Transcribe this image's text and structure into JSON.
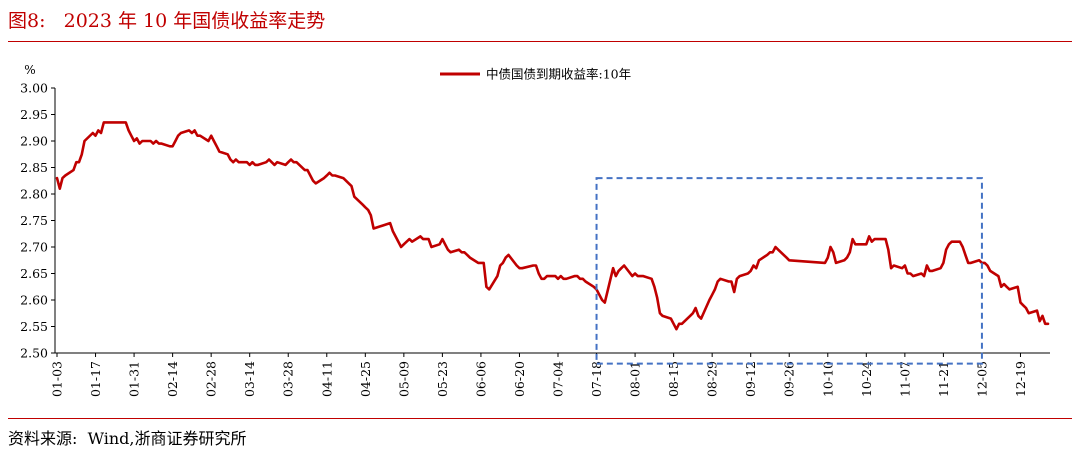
{
  "figure": {
    "title": "图8:   2023 年 10 年国债收益率走势",
    "source": "资料来源:  Wind,浙商证券研究所"
  },
  "colors": {
    "title": "#c00000",
    "series": "#c00000",
    "highlight_box": "#4472c4",
    "axis": "#000000"
  },
  "chart_data": {
    "type": "line",
    "title": "",
    "xlabel": "",
    "ylabel": "%",
    "ylim": [
      2.5,
      3.0
    ],
    "yticks": [
      "3.00",
      "2.95",
      "2.90",
      "2.85",
      "2.80",
      "2.75",
      "2.70",
      "2.65",
      "2.60",
      "2.55",
      "2.50"
    ],
    "xticks": [
      "01-03",
      "01-17",
      "01-31",
      "02-14",
      "02-28",
      "03-14",
      "03-28",
      "04-11",
      "04-25",
      "05-09",
      "05-23",
      "06-06",
      "06-20",
      "07-04",
      "07-18",
      "08-01",
      "08-15",
      "08-29",
      "09-12",
      "09-26",
      "10-10",
      "10-24",
      "11-07",
      "11-21",
      "12-05",
      "12-19"
    ],
    "legend": "top-center",
    "grid": false,
    "highlight": {
      "style": "dashed-rectangle",
      "x_range": [
        "07-18",
        "12-05"
      ],
      "y_range": [
        2.48,
        2.83
      ]
    },
    "series": [
      {
        "name": "中债国债到期收益率:10年",
        "points": [
          [
            "01-03",
            2.83
          ],
          [
            "01-04",
            2.81
          ],
          [
            "01-05",
            2.83
          ],
          [
            "01-06",
            2.835
          ],
          [
            "01-09",
            2.845
          ],
          [
            "01-10",
            2.86
          ],
          [
            "01-11",
            2.86
          ],
          [
            "01-12",
            2.875
          ],
          [
            "01-13",
            2.9
          ],
          [
            "01-16",
            2.915
          ],
          [
            "01-17",
            2.91
          ],
          [
            "01-18",
            2.92
          ],
          [
            "01-19",
            2.915
          ],
          [
            "01-20",
            2.935
          ],
          [
            "01-28",
            2.935
          ],
          [
            "01-29",
            2.92
          ],
          [
            "01-30",
            2.91
          ],
          [
            "01-31",
            2.9
          ],
          [
            "02-01",
            2.905
          ],
          [
            "02-02",
            2.895
          ],
          [
            "02-03",
            2.9
          ],
          [
            "02-06",
            2.9
          ],
          [
            "02-07",
            2.895
          ],
          [
            "02-08",
            2.9
          ],
          [
            "02-09",
            2.895
          ],
          [
            "02-10",
            2.895
          ],
          [
            "02-13",
            2.89
          ],
          [
            "02-14",
            2.89
          ],
          [
            "02-15",
            2.9
          ],
          [
            "02-16",
            2.91
          ],
          [
            "02-17",
            2.915
          ],
          [
            "02-20",
            2.92
          ],
          [
            "02-21",
            2.915
          ],
          [
            "02-22",
            2.92
          ],
          [
            "02-23",
            2.91
          ],
          [
            "02-24",
            2.91
          ],
          [
            "02-27",
            2.9
          ],
          [
            "02-28",
            2.91
          ],
          [
            "03-01",
            2.9
          ],
          [
            "03-02",
            2.89
          ],
          [
            "03-03",
            2.88
          ],
          [
            "03-06",
            2.875
          ],
          [
            "03-07",
            2.865
          ],
          [
            "03-08",
            2.86
          ],
          [
            "03-09",
            2.865
          ],
          [
            "03-10",
            2.86
          ],
          [
            "03-13",
            2.86
          ],
          [
            "03-14",
            2.855
          ],
          [
            "03-15",
            2.86
          ],
          [
            "03-16",
            2.855
          ],
          [
            "03-17",
            2.855
          ],
          [
            "03-20",
            2.86
          ],
          [
            "03-21",
            2.865
          ],
          [
            "03-22",
            2.86
          ],
          [
            "03-23",
            2.855
          ],
          [
            "03-24",
            2.86
          ],
          [
            "03-27",
            2.855
          ],
          [
            "03-28",
            2.86
          ],
          [
            "03-29",
            2.865
          ],
          [
            "03-30",
            2.86
          ],
          [
            "03-31",
            2.86
          ],
          [
            "04-03",
            2.845
          ],
          [
            "04-04",
            2.845
          ],
          [
            "04-06",
            2.825
          ],
          [
            "04-07",
            2.82
          ],
          [
            "04-10",
            2.83
          ],
          [
            "04-11",
            2.835
          ],
          [
            "04-12",
            2.84
          ],
          [
            "04-13",
            2.835
          ],
          [
            "04-14",
            2.835
          ],
          [
            "04-17",
            2.83
          ],
          [
            "04-18",
            2.825
          ],
          [
            "04-19",
            2.82
          ],
          [
            "04-20",
            2.815
          ],
          [
            "04-21",
            2.795
          ],
          [
            "04-24",
            2.78
          ],
          [
            "04-25",
            2.775
          ],
          [
            "04-26",
            2.77
          ],
          [
            "04-27",
            2.76
          ],
          [
            "04-28",
            2.735
          ],
          [
            "05-04",
            2.745
          ],
          [
            "05-05",
            2.73
          ],
          [
            "05-08",
            2.7
          ],
          [
            "05-09",
            2.705
          ],
          [
            "05-10",
            2.71
          ],
          [
            "05-11",
            2.715
          ],
          [
            "05-12",
            2.71
          ],
          [
            "05-15",
            2.72
          ],
          [
            "05-16",
            2.715
          ],
          [
            "05-17",
            2.715
          ],
          [
            "05-18",
            2.715
          ],
          [
            "05-19",
            2.7
          ],
          [
            "05-22",
            2.705
          ],
          [
            "05-23",
            2.715
          ],
          [
            "05-24",
            2.705
          ],
          [
            "05-25",
            2.695
          ],
          [
            "05-26",
            2.69
          ],
          [
            "05-29",
            2.695
          ],
          [
            "05-30",
            2.69
          ],
          [
            "05-31",
            2.69
          ],
          [
            "06-01",
            2.685
          ],
          [
            "06-02",
            2.68
          ],
          [
            "06-05",
            2.67
          ],
          [
            "06-06",
            2.67
          ],
          [
            "06-07",
            2.67
          ],
          [
            "06-08",
            2.625
          ],
          [
            "06-09",
            2.62
          ],
          [
            "06-12",
            2.645
          ],
          [
            "06-13",
            2.665
          ],
          [
            "06-14",
            2.67
          ],
          [
            "06-15",
            2.68
          ],
          [
            "06-16",
            2.685
          ],
          [
            "06-19",
            2.665
          ],
          [
            "06-20",
            2.66
          ],
          [
            "06-21",
            2.66
          ],
          [
            "06-25",
            2.665
          ],
          [
            "06-26",
            2.665
          ],
          [
            "06-27",
            2.65
          ],
          [
            "06-28",
            2.64
          ],
          [
            "06-29",
            2.64
          ],
          [
            "06-30",
            2.645
          ],
          [
            "07-03",
            2.645
          ],
          [
            "07-04",
            2.64
          ],
          [
            "07-05",
            2.645
          ],
          [
            "07-06",
            2.64
          ],
          [
            "07-07",
            2.64
          ],
          [
            "07-10",
            2.645
          ],
          [
            "07-11",
            2.645
          ],
          [
            "07-12",
            2.64
          ],
          [
            "07-13",
            2.64
          ],
          [
            "07-14",
            2.635
          ],
          [
            "07-17",
            2.625
          ],
          [
            "07-18",
            2.62
          ],
          [
            "07-19",
            2.61
          ],
          [
            "07-20",
            2.6
          ],
          [
            "07-21",
            2.595
          ],
          [
            "07-24",
            2.66
          ],
          [
            "07-25",
            2.645
          ],
          [
            "07-26",
            2.655
          ],
          [
            "07-27",
            2.66
          ],
          [
            "07-28",
            2.665
          ],
          [
            "07-31",
            2.645
          ],
          [
            "08-01",
            2.65
          ],
          [
            "08-02",
            2.645
          ],
          [
            "08-03",
            2.645
          ],
          [
            "08-04",
            2.645
          ],
          [
            "08-07",
            2.64
          ],
          [
            "08-08",
            2.625
          ],
          [
            "08-09",
            2.605
          ],
          [
            "08-10",
            2.575
          ],
          [
            "08-11",
            2.57
          ],
          [
            "08-14",
            2.565
          ],
          [
            "08-15",
            2.555
          ],
          [
            "08-16",
            2.545
          ],
          [
            "08-17",
            2.555
          ],
          [
            "08-18",
            2.555
          ],
          [
            "08-21",
            2.57
          ],
          [
            "08-22",
            2.575
          ],
          [
            "08-23",
            2.585
          ],
          [
            "08-24",
            2.57
          ],
          [
            "08-25",
            2.565
          ],
          [
            "08-28",
            2.6
          ],
          [
            "08-29",
            2.61
          ],
          [
            "08-30",
            2.62
          ],
          [
            "08-31",
            2.635
          ],
          [
            "09-01",
            2.64
          ],
          [
            "09-04",
            2.635
          ],
          [
            "09-05",
            2.635
          ],
          [
            "09-06",
            2.615
          ],
          [
            "09-07",
            2.64
          ],
          [
            "09-08",
            2.645
          ],
          [
            "09-11",
            2.65
          ],
          [
            "09-12",
            2.655
          ],
          [
            "09-13",
            2.665
          ],
          [
            "09-14",
            2.66
          ],
          [
            "09-15",
            2.675
          ],
          [
            "09-18",
            2.685
          ],
          [
            "09-19",
            2.69
          ],
          [
            "09-20",
            2.69
          ],
          [
            "09-21",
            2.7
          ],
          [
            "09-22",
            2.695
          ],
          [
            "09-25",
            2.68
          ],
          [
            "09-26",
            2.675
          ],
          [
            "10-09",
            2.67
          ],
          [
            "10-10",
            2.68
          ],
          [
            "10-11",
            2.7
          ],
          [
            "10-12",
            2.69
          ],
          [
            "10-13",
            2.67
          ],
          [
            "10-16",
            2.675
          ],
          [
            "10-17",
            2.68
          ],
          [
            "10-18",
            2.69
          ],
          [
            "10-19",
            2.715
          ],
          [
            "10-20",
            2.705
          ],
          [
            "10-23",
            2.705
          ],
          [
            "10-24",
            2.705
          ],
          [
            "10-25",
            2.72
          ],
          [
            "10-26",
            2.71
          ],
          [
            "10-27",
            2.715
          ],
          [
            "10-30",
            2.715
          ],
          [
            "10-31",
            2.715
          ],
          [
            "11-01",
            2.695
          ],
          [
            "11-02",
            2.66
          ],
          [
            "11-03",
            2.665
          ],
          [
            "11-06",
            2.66
          ],
          [
            "11-07",
            2.665
          ],
          [
            "11-08",
            2.65
          ],
          [
            "11-09",
            2.65
          ],
          [
            "11-10",
            2.645
          ],
          [
            "11-13",
            2.65
          ],
          [
            "11-14",
            2.645
          ],
          [
            "11-15",
            2.665
          ],
          [
            "11-16",
            2.655
          ],
          [
            "11-17",
            2.655
          ],
          [
            "11-20",
            2.66
          ],
          [
            "11-21",
            2.67
          ],
          [
            "11-22",
            2.695
          ],
          [
            "11-23",
            2.705
          ],
          [
            "11-24",
            2.71
          ],
          [
            "11-27",
            2.71
          ],
          [
            "11-28",
            2.7
          ],
          [
            "11-29",
            2.685
          ],
          [
            "11-30",
            2.67
          ],
          [
            "12-01",
            2.67
          ],
          [
            "12-04",
            2.675
          ],
          [
            "12-05",
            2.67
          ],
          [
            "12-06",
            2.67
          ],
          [
            "12-07",
            2.665
          ],
          [
            "12-08",
            2.655
          ],
          [
            "12-11",
            2.645
          ],
          [
            "12-12",
            2.625
          ],
          [
            "12-13",
            2.63
          ],
          [
            "12-14",
            2.625
          ],
          [
            "12-15",
            2.62
          ],
          [
            "12-18",
            2.625
          ],
          [
            "12-19",
            2.595
          ],
          [
            "12-20",
            2.59
          ],
          [
            "12-21",
            2.585
          ],
          [
            "12-22",
            2.575
          ],
          [
            "12-25",
            2.58
          ],
          [
            "12-26",
            2.56
          ],
          [
            "12-27",
            2.57
          ],
          [
            "12-28",
            2.555
          ],
          [
            "12-29",
            2.555
          ]
        ]
      }
    ]
  }
}
